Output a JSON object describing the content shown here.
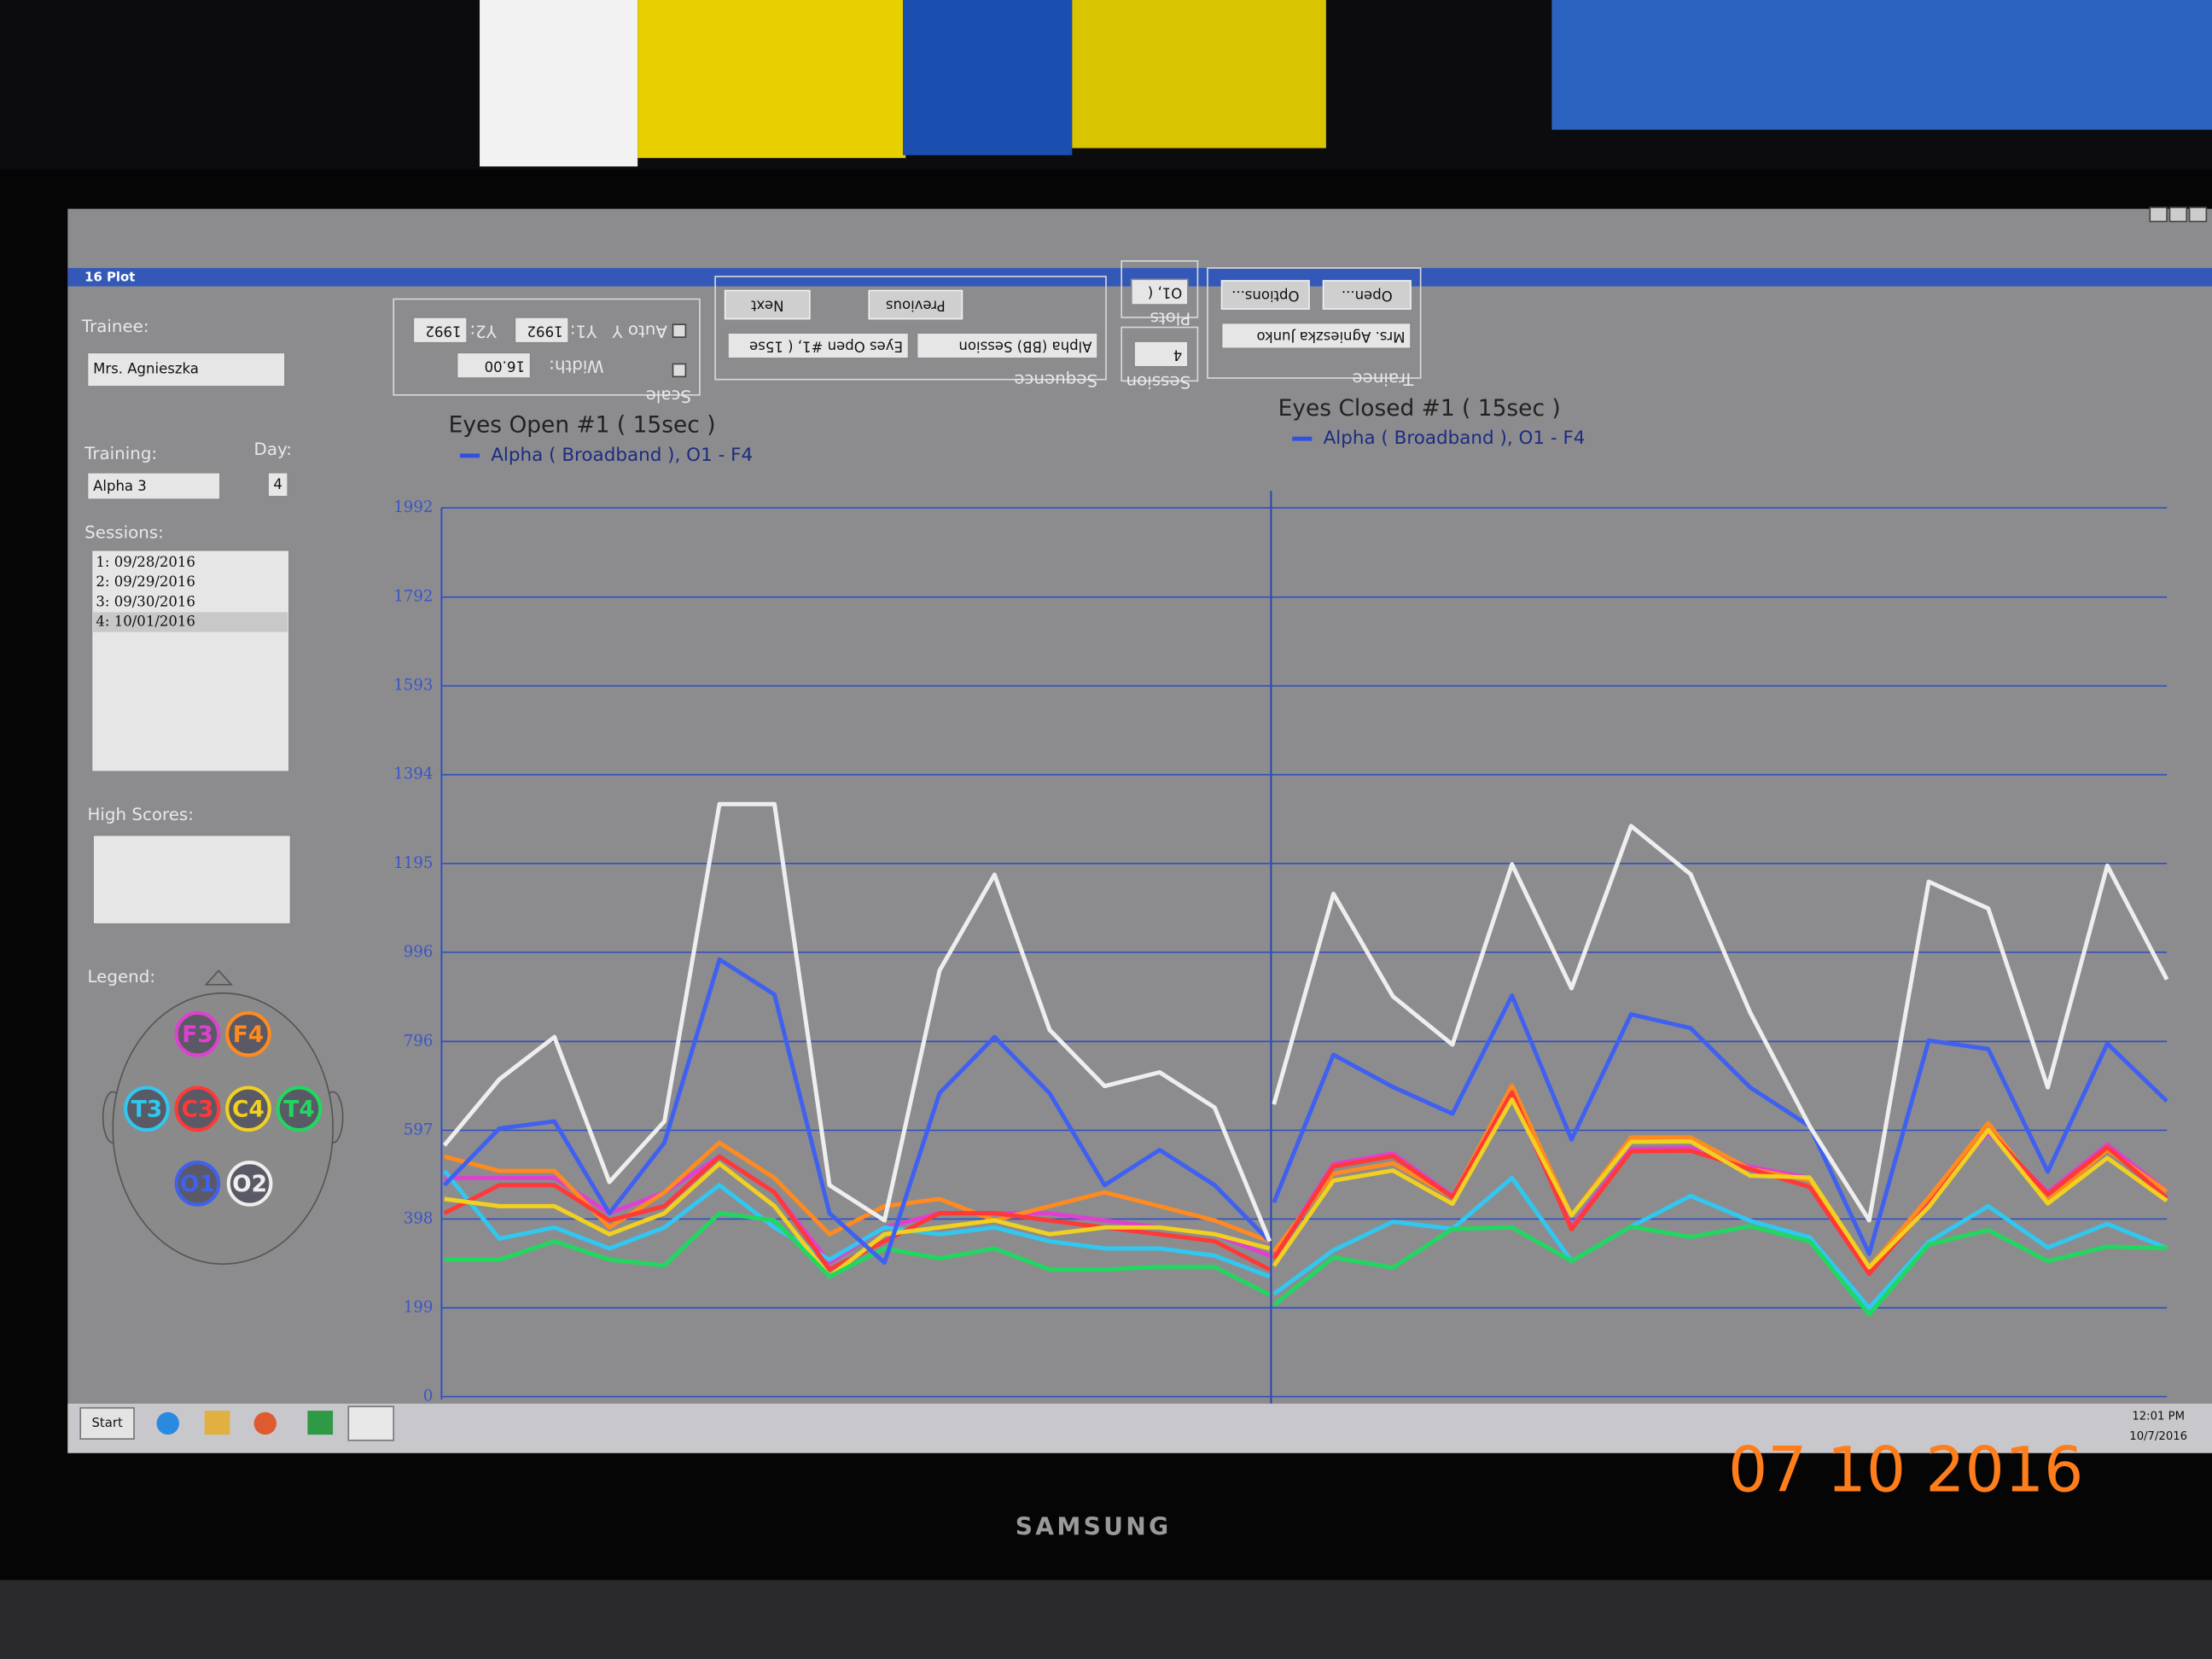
{
  "window": {
    "title": "16 Plot"
  },
  "trainee_panel": {
    "trainee_label": "Trainee:",
    "trainee": "Mrs. Agnieszka",
    "training_label": "Training:",
    "training": "Alpha 3",
    "day_label": "Day:",
    "day": "4",
    "sessions_label": "Sessions:",
    "sessions": [
      "1: 09/28/2016",
      "2: 09/29/2016",
      "3: 09/30/2016",
      "4: 10/01/2016"
    ],
    "high_scores_label": "High Scores:",
    "legend_label": "Legend:"
  },
  "toolbar": {
    "scale": {
      "label": "Scale",
      "width_label": "Width:",
      "width": "16.00",
      "auto_y": "Auto Y",
      "y1_label": "Y1:",
      "y1": "1992",
      "y2_label": "Y2:",
      "y2": "1992"
    },
    "sequence": {
      "label": "Sequence",
      "session_type": "Alpha (BB) Session",
      "step": "Eyes Open #1, ( 15se",
      "previous": "Previous",
      "next": "Next"
    },
    "session": {
      "label": "Session",
      "value": "4"
    },
    "plots": {
      "label": "Plots",
      "value": "O1, ("
    },
    "trainee": {
      "label": "Trainee",
      "value": "Mrs. Agnieszka Junko",
      "open": "Open...",
      "options": "Options..."
    }
  },
  "taskbar": {
    "start": "Start",
    "time": "12:01 PM",
    "date": "10/7/2016"
  },
  "monitor_brand": "SAMSUNG",
  "photo_date": "07 10 2016",
  "chart_data": [
    {
      "type": "line",
      "title": "Eyes Open #1 ( 15sec )",
      "subtitle": "Alpha ( Broadband ), O1 - F4",
      "ylim": [
        0,
        1992
      ],
      "yticks": [
        0,
        199,
        398,
        597,
        796,
        996,
        1195,
        1394,
        1593,
        1792,
        1992
      ],
      "grid": true,
      "series": [
        {
          "name": "F3",
          "color": "#e040d0",
          "values": [
            490,
            490,
            490,
            411,
            458,
            538,
            458,
            300,
            379,
            411,
            411,
            411,
            395,
            379,
            364,
            316
          ]
        },
        {
          "name": "F4",
          "color": "#ff8a20",
          "values": [
            538,
            506,
            506,
            379,
            458,
            569,
            490,
            364,
            427,
            443,
            395,
            427,
            458,
            427,
            395,
            348
          ]
        },
        {
          "name": "T3",
          "color": "#30c8f0",
          "values": [
            506,
            354,
            379,
            332,
            379,
            474,
            379,
            307,
            379,
            364,
            379,
            348,
            332,
            332,
            316,
            269
          ]
        },
        {
          "name": "C3",
          "color": "#ff3838",
          "values": [
            411,
            474,
            474,
            395,
            427,
            538,
            458,
            285,
            348,
            411,
            411,
            395,
            379,
            364,
            348,
            285
          ]
        },
        {
          "name": "C4",
          "color": "#f0d020",
          "values": [
            443,
            427,
            427,
            364,
            411,
            522,
            427,
            269,
            364,
            379,
            395,
            364,
            379,
            379,
            364,
            332
          ]
        },
        {
          "name": "T4",
          "color": "#20d860",
          "values": [
            307,
            307,
            348,
            307,
            294,
            411,
            395,
            269,
            332,
            310,
            332,
            285,
            285,
            291,
            291,
            228
          ]
        },
        {
          "name": "O1",
          "color": "#4060f0",
          "values": [
            474,
            601,
            617,
            411,
            569,
            980,
            901,
            411,
            300,
            680,
            806,
            680,
            474,
            553,
            474,
            348
          ]
        },
        {
          "name": "O2",
          "color": "#eeeeee",
          "values": [
            563,
            711,
            806,
            481,
            617,
            1328,
            1328,
            474,
            395,
            955,
            1170,
            822,
            696,
            727,
            648,
            348
          ]
        }
      ]
    },
    {
      "type": "line",
      "title": "Eyes Closed #1 ( 15sec )",
      "subtitle": "Alpha ( Broadband ), O1 - F4",
      "ylim": [
        0,
        1992
      ],
      "series": [
        {
          "color": "#e040d0",
          "values": [
            312,
            521,
            545,
            450,
            676,
            380,
            555,
            557,
            515,
            490,
            283,
            440,
            592,
            458,
            565,
            460
          ]
        },
        {
          "color": "#ff8a20",
          "values": [
            325,
            500,
            523,
            447,
            697,
            406,
            581,
            581,
            510,
            485,
            290,
            446,
            613,
            439,
            553,
            460
          ]
        },
        {
          "color": "#30c8f0",
          "values": [
            230,
            328,
            392,
            376,
            490,
            304,
            381,
            450,
            394,
            357,
            199,
            347,
            427,
            334,
            387,
            333
          ]
        },
        {
          "color": "#ff3838",
          "values": [
            309,
            516,
            539,
            447,
            682,
            375,
            550,
            551,
            510,
            470,
            275,
            431,
            598,
            453,
            559,
            445
          ]
        },
        {
          "color": "#f0d020",
          "values": [
            293,
            484,
            507,
            432,
            666,
            406,
            571,
            572,
            495,
            491,
            290,
            425,
            598,
            433,
            535,
            439
          ]
        },
        {
          "color": "#20d860",
          "values": [
            205,
            312,
            289,
            376,
            379,
            304,
            381,
            358,
            382,
            348,
            184,
            341,
            373,
            304,
            336,
            333
          ]
        },
        {
          "color": "#4060f0",
          "values": [
            435,
            766,
            694,
            634,
            899,
            576,
            857,
            826,
            693,
            606,
            320,
            798,
            779,
            504,
            791,
            662
          ]
        },
        {
          "color": "#eeeeee",
          "values": [
            655,
            1127,
            897,
            789,
            1193,
            915,
            1279,
            1171,
            861,
            606,
            395,
            1154,
            1094,
            693,
            1190,
            935
          ]
        }
      ]
    }
  ]
}
